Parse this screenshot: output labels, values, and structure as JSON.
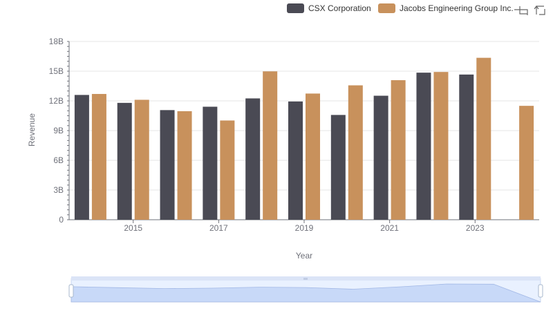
{
  "chart_data": {
    "type": "bar",
    "title": "",
    "xlabel": "Year",
    "ylabel": "Revenue",
    "categories": [
      "2014",
      "2015",
      "2016",
      "2017",
      "2018",
      "2019",
      "2020",
      "2021",
      "2022",
      "2023",
      "2024"
    ],
    "x_tick_labels": [
      "2015",
      "2017",
      "2019",
      "2021",
      "2023"
    ],
    "y_tick_labels": [
      "0",
      "3B",
      "6B",
      "9B",
      "12B",
      "15B",
      "18B"
    ],
    "ylim": [
      0,
      18000000000
    ],
    "y_ticks": [
      0,
      3000000000,
      6000000000,
      9000000000,
      12000000000,
      15000000000,
      18000000000
    ],
    "series": [
      {
        "name": "CSX Corporation",
        "color": "#4a4a54",
        "values": [
          12600000000,
          11800000000,
          11070000000,
          11410000000,
          12250000000,
          11940000000,
          10580000000,
          12520000000,
          14850000000,
          14660000000,
          null
        ]
      },
      {
        "name": "Jacobs Engineering Group Inc.",
        "color": "#c8915c",
        "values": [
          12700000000,
          12110000000,
          10960000000,
          10020000000,
          14980000000,
          12740000000,
          13570000000,
          14090000000,
          14920000000,
          16350000000,
          11500000000
        ]
      }
    ],
    "grid": true,
    "legend_position": "top-right",
    "toolbox": [
      "zoom-icon",
      "restore-icon"
    ],
    "data_zoom": {
      "start": 0,
      "end": 100
    }
  }
}
